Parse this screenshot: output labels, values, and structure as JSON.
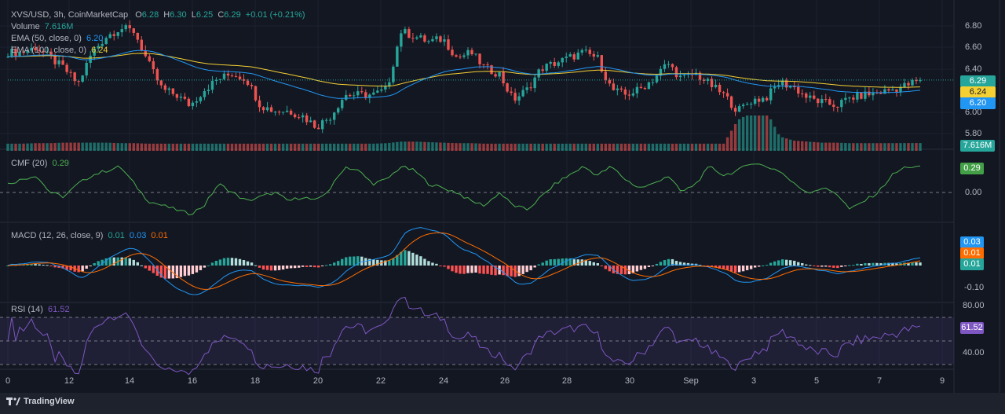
{
  "header": {
    "symbol": "XVS/USD, 3h, CoinMarketCap",
    "o_label": "O",
    "o": "6.28",
    "h_label": "H",
    "h": "6.30",
    "l_label": "L",
    "l": "6.25",
    "c_label": "C",
    "c": "6.29",
    "change": "+0.01 (+0.21%)"
  },
  "legends": {
    "volume": {
      "label": "Volume",
      "value": "7.616M"
    },
    "ema50": {
      "label": "EMA (50, close, 0)",
      "value": "6.20"
    },
    "ema100": {
      "label": "EMA (100, close, 0)",
      "value": "6.24"
    },
    "cmf": {
      "label": "CMF (20)",
      "value": "0.29"
    },
    "macd": {
      "label": "MACD (12, 26, close, 9)",
      "hist": "0.01",
      "macd": "0.03",
      "signal": "0.01"
    },
    "rsi": {
      "label": "RSI (14)",
      "value": "61.52"
    }
  },
  "axis": {
    "price_ticks": [
      "6.80",
      "6.60",
      "6.40",
      "6.00",
      "5.80"
    ],
    "cmf_ticks": [
      "0.00"
    ],
    "macd_ticks": [
      "-0.10"
    ],
    "rsi_ticks": [
      "80.00",
      "40.00"
    ],
    "x_ticks": [
      "0",
      "12",
      "14",
      "16",
      "18",
      "20",
      "22",
      "24",
      "26",
      "28",
      "30",
      "Sep",
      "3",
      "5",
      "7",
      "9"
    ]
  },
  "labels": {
    "price": "6.29",
    "ema100": "6.24",
    "ema50": "6.20",
    "volume": "7.616M",
    "cmf": "0.29",
    "macd": "0.03",
    "signal": "0.01",
    "hist": "0.01",
    "rsi": "61.52"
  },
  "colors": {
    "up": "#26a69a",
    "down": "#ef5350",
    "ema50": "#2196f3",
    "ema100": "#f5d033",
    "cmf": "#4caf50",
    "macd": "#2196f3",
    "signal": "#ff6d00",
    "rsi": "#7e57c2"
  },
  "footer": {
    "brand": "TradingView"
  },
  "chart_data": {
    "type": "candlestick",
    "title": "XVS/USD, 3h, CoinMarketCap",
    "ylim": [
      5.75,
      6.85
    ],
    "closes_sampled": [
      6.55,
      6.55,
      6.6,
      6.5,
      6.4,
      6.25,
      6.55,
      6.7,
      6.78,
      6.75,
      6.45,
      6.2,
      6.15,
      6.05,
      6.2,
      6.3,
      6.35,
      6.3,
      6.05,
      6.0,
      6.0,
      5.95,
      5.85,
      5.95,
      6.15,
      6.15,
      6.15,
      6.2,
      6.75,
      6.7,
      6.65,
      6.68,
      6.5,
      6.55,
      6.4,
      6.35,
      6.1,
      6.2,
      6.4,
      6.45,
      6.5,
      6.55,
      6.5,
      6.2,
      6.15,
      6.2,
      6.3,
      6.45,
      6.3,
      6.35,
      6.25,
      6.15,
      6.0,
      6.1,
      6.12,
      6.27,
      6.22,
      6.12,
      6.08,
      6.05,
      6.12,
      6.15,
      6.17,
      6.2,
      6.24,
      6.29
    ],
    "volume_sampled_M": [
      7,
      7,
      7.5,
      7.5,
      8,
      8,
      8,
      8,
      7.5,
      7.5,
      7,
      7,
      7,
      7,
      7,
      7,
      7,
      7,
      7,
      7,
      7,
      7,
      7,
      7,
      7,
      7,
      7,
      7.5,
      9,
      9,
      8.5,
      8,
      7.5,
      7.5,
      7,
      7,
      7,
      7,
      7,
      7,
      7,
      7,
      7,
      7,
      7,
      7,
      7,
      7,
      7,
      7,
      7,
      7,
      30,
      38,
      40,
      14,
      10,
      9,
      8,
      8,
      7.5,
      7.5,
      7.5,
      7.5,
      7.6,
      7.616
    ],
    "cmf_sampled": [
      0.1,
      0.15,
      0.2,
      0.0,
      -0.05,
      0.1,
      0.2,
      0.25,
      0.3,
      0.1,
      -0.1,
      -0.15,
      -0.2,
      -0.25,
      -0.15,
      0.1,
      0.0,
      -0.1,
      -0.05,
      0.0,
      -0.1,
      -0.05,
      -0.1,
      0.05,
      0.3,
      0.25,
      0.1,
      0.15,
      0.3,
      0.25,
      0.1,
      0.05,
      0.0,
      -0.1,
      -0.15,
      0.0,
      -0.15,
      -0.2,
      -0.05,
      0.1,
      0.2,
      0.3,
      0.2,
      0.3,
      0.15,
      0.05,
      0.1,
      0.2,
      0.0,
      0.1,
      0.3,
      0.2,
      0.25,
      0.35,
      0.3,
      0.25,
      0.1,
      0.0,
      0.05,
      0.0,
      -0.2,
      -0.1,
      0.0,
      0.2,
      0.3,
      0.29
    ],
    "indicators": {
      "ema50": 6.2,
      "ema100": 6.24,
      "cmf": 0.29,
      "macd": 0.03,
      "signal": 0.01,
      "histogram": 0.01,
      "rsi": 61.52
    }
  }
}
